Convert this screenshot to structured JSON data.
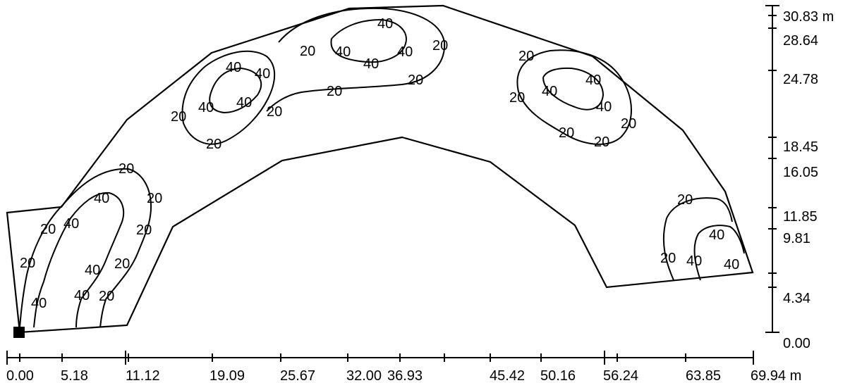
{
  "x_axis": {
    "unit": "m",
    "ticks": [
      "0.00",
      "5.18",
      "11.12",
      "19.09",
      "25.67",
      "32.00",
      "36.93",
      "45.42",
      "50.16",
      "56.24",
      "63.85",
      "69.94 m"
    ]
  },
  "y_axis": {
    "unit": "m",
    "ticks": [
      "30.83 m",
      "28.64",
      "24.78",
      "18.45",
      "16.05",
      "11.85",
      "9.81",
      "4.34",
      "0.00"
    ]
  },
  "contour_labels": {
    "l20_a": "20",
    "l40_a": "40",
    "l20_b": "20",
    "l40_b": "40",
    "l20_c": "20",
    "l40_c": "40",
    "l20_d": "20",
    "l20_e": "20",
    "l40_d": "40",
    "l20_f": "20",
    "l40_e": "40",
    "l20_g": "20",
    "l40_f": "40",
    "l40_g": "40",
    "l20_h": "20",
    "l40_h": "40",
    "l40_i": "40",
    "l20_i": "20",
    "l20_j": "20",
    "l20_k": "20",
    "l40_j": "40",
    "l40_k": "40",
    "l40_l": "40",
    "l40_m": "40",
    "l20_l": "20",
    "l20_m": "20",
    "l20_n": "20",
    "l20_o": "20",
    "l40_n": "40",
    "l40_o": "40",
    "l40_p": "40",
    "l20_p": "20",
    "l20_q": "20",
    "l20_r": "20",
    "l20_s": "20",
    "l20_t": "20",
    "l40_q": "40",
    "l20_u": "20",
    "l40_r": "40",
    "l40_s": "40"
  },
  "origin_marker": "black-square"
}
